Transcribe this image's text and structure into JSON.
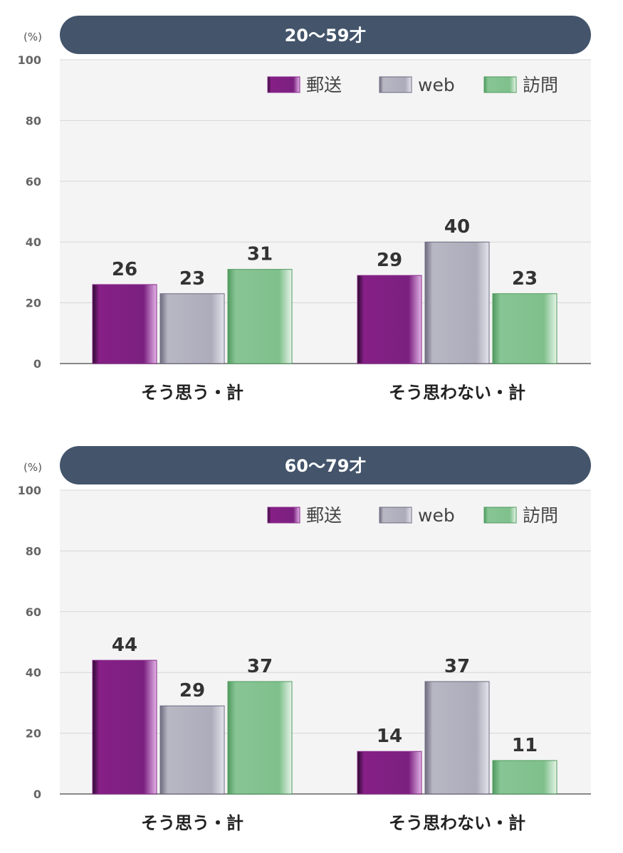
{
  "colors": {
    "title_bg": "#43546b",
    "plot_bg": "#f4f4f4",
    "grid": "#d6d6d6",
    "axis": "#888888",
    "tick": "#666666",
    "value": "#333333"
  },
  "chart_data": [
    {
      "type": "bar",
      "title": "20〜59才",
      "ylabel": "(%)",
      "ylim": [
        0,
        100
      ],
      "yticks": [
        0,
        20,
        40,
        60,
        80,
        100
      ],
      "grid": true,
      "legend_placement": "top-right",
      "categories": [
        "そう思う・計",
        "そう思わない・計"
      ],
      "series": [
        {
          "name": "郵送",
          "values": [
            26,
            29
          ]
        },
        {
          "name": "web",
          "values": [
            23,
            40
          ]
        },
        {
          "name": "訪問",
          "values": [
            31,
            23
          ]
        }
      ]
    },
    {
      "type": "bar",
      "title": "60〜79才",
      "ylabel": "(%)",
      "ylim": [
        0,
        100
      ],
      "yticks": [
        0,
        20,
        40,
        60,
        80,
        100
      ],
      "grid": true,
      "legend_placement": "top-right",
      "categories": [
        "そう思う・計",
        "そう思わない・計"
      ],
      "series": [
        {
          "name": "郵送",
          "values": [
            44,
            14
          ]
        },
        {
          "name": "web",
          "values": [
            29,
            37
          ]
        },
        {
          "name": "訪問",
          "values": [
            37,
            11
          ]
        }
      ]
    }
  ]
}
